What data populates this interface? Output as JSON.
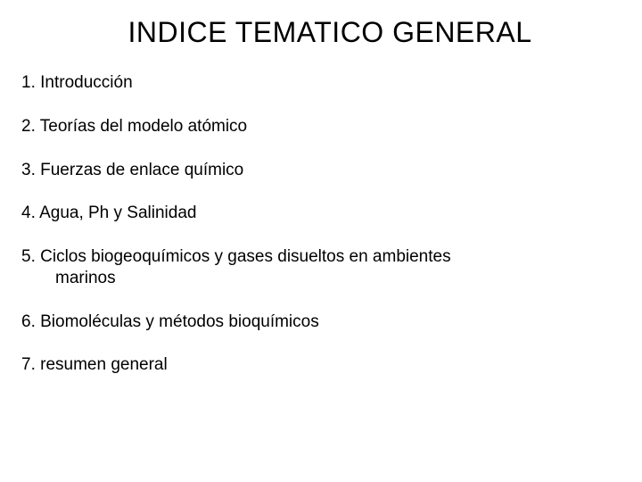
{
  "title": "INDICE TEMATICO GENERAL",
  "items": [
    {
      "text": "1. Introducción"
    },
    {
      "text": "2. Teorías del modelo atómico"
    },
    {
      "text": "3. Fuerzas de enlace químico"
    },
    {
      "text": "4. Agua, Ph y Salinidad"
    },
    {
      "text": "5. Ciclos biogeoquímicos y gases disueltos en ambientes",
      "cont": "marinos"
    },
    {
      "text": "6. Biomoléculas y métodos bioquímicos"
    },
    {
      "text": "7. resumen general"
    }
  ],
  "colors": {
    "background": "#ffffff",
    "text": "#000000"
  },
  "typography": {
    "title_fontsize": 32,
    "item_fontsize": 19,
    "font_family": "Arial"
  }
}
